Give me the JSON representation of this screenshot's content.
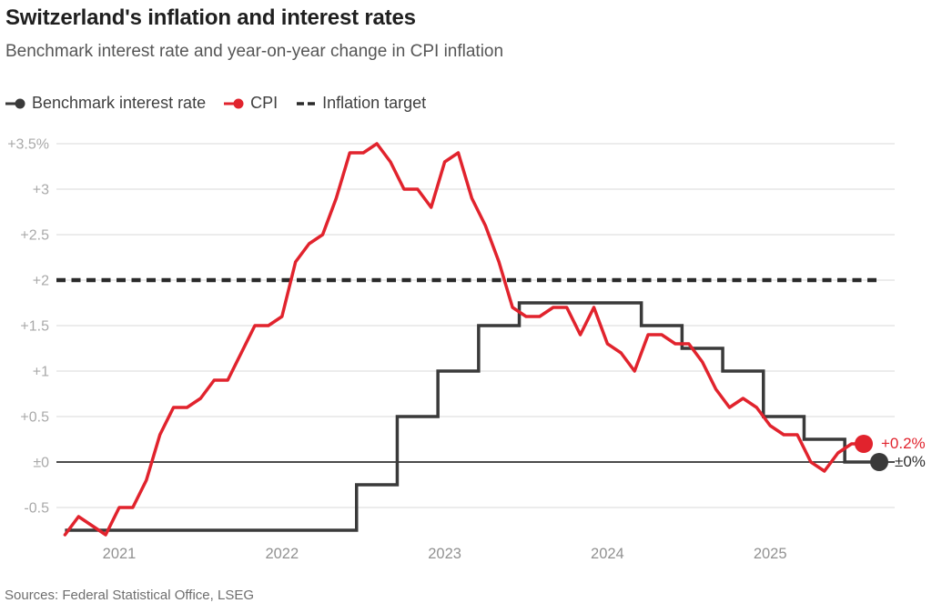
{
  "header": {
    "title": "Switzerland's inflation and interest rates",
    "subtitle": "Benchmark interest rate and year-on-year change in CPI inflation"
  },
  "legend": {
    "items": [
      {
        "label": "Benchmark interest rate",
        "marker": "line-dot-icon",
        "color": "#3a3a3a"
      },
      {
        "label": "CPI",
        "marker": "line-dot-icon",
        "color": "#e1232d"
      },
      {
        "label": "Inflation target",
        "marker": "dashes-icon",
        "color": "#2a2a2a"
      }
    ]
  },
  "chart_data": {
    "type": "line",
    "title": "Switzerland's inflation and interest rates",
    "subtitle": "Benchmark interest rate and year-on-year change in CPI inflation",
    "xlabel": "",
    "ylabel": "",
    "grid": true,
    "legend_position": "top",
    "ylim": [
      -0.85,
      3.6
    ],
    "y_ticks": [
      {
        "label": "+3.5%",
        "value": 3.5
      },
      {
        "label": "+3",
        "value": 3
      },
      {
        "label": "+2.5",
        "value": 2.5
      },
      {
        "label": "+2",
        "value": 2
      },
      {
        "label": "+1.5",
        "value": 1.5
      },
      {
        "label": "+1",
        "value": 1
      },
      {
        "label": "+0.5",
        "value": 0.5
      },
      {
        "label": "±0",
        "value": 0
      },
      {
        "label": "-0.5",
        "value": -0.5
      }
    ],
    "x_ticks": [
      {
        "label": "2021",
        "date": "2021-01"
      },
      {
        "label": "2022",
        "date": "2022-01"
      },
      {
        "label": "2023",
        "date": "2023-01"
      },
      {
        "label": "2024",
        "date": "2024-01"
      },
      {
        "label": "2025",
        "date": "2025-01"
      }
    ],
    "series": [
      {
        "name": "CPI",
        "type": "monthly-line",
        "color": "#e1232d",
        "start": "2020-09",
        "end": "2025-07",
        "values": [
          -0.8,
          -0.6,
          -0.7,
          -0.8,
          -0.5,
          -0.5,
          -0.2,
          0.3,
          0.6,
          0.6,
          0.7,
          0.9,
          0.9,
          1.2,
          1.5,
          1.5,
          1.6,
          2.2,
          2.4,
          2.5,
          2.9,
          3.4,
          3.4,
          3.5,
          3.3,
          3.0,
          3.0,
          2.8,
          3.3,
          3.4,
          2.9,
          2.6,
          2.2,
          1.7,
          1.6,
          1.6,
          1.7,
          1.7,
          1.4,
          1.7,
          1.3,
          1.2,
          1.0,
          1.4,
          1.4,
          1.3,
          1.3,
          1.1,
          0.8,
          0.6,
          0.7,
          0.6,
          0.4,
          0.3,
          0.3,
          0.0,
          -0.1,
          0.1,
          0.2
        ],
        "end_label": "+0.2%"
      },
      {
        "name": "Benchmark interest rate",
        "type": "step",
        "color": "#3a3a3a",
        "points": [
          {
            "date": "2020-09",
            "value": -0.75
          },
          {
            "date": "2022-06",
            "value": -0.25
          },
          {
            "date": "2022-09",
            "value": 0.5
          },
          {
            "date": "2022-12",
            "value": 1.0
          },
          {
            "date": "2023-03",
            "value": 1.5
          },
          {
            "date": "2023-06",
            "value": 1.75
          },
          {
            "date": "2024-03",
            "value": 1.5
          },
          {
            "date": "2024-06",
            "value": 1.25
          },
          {
            "date": "2024-09",
            "value": 1.0
          },
          {
            "date": "2024-12",
            "value": 0.5
          },
          {
            "date": "2025-03",
            "value": 0.25
          },
          {
            "date": "2025-06",
            "value": 0.0
          }
        ],
        "end_label": "±0%"
      },
      {
        "name": "Inflation target",
        "type": "reference-dashed",
        "color": "#2a2a2a",
        "value": 2
      }
    ]
  },
  "annotations": {
    "cpi_end_label": "+0.2%",
    "rate_end_label": "±0%"
  },
  "footer": {
    "sources": "Sources: Federal Statistical Office, LSEG"
  }
}
